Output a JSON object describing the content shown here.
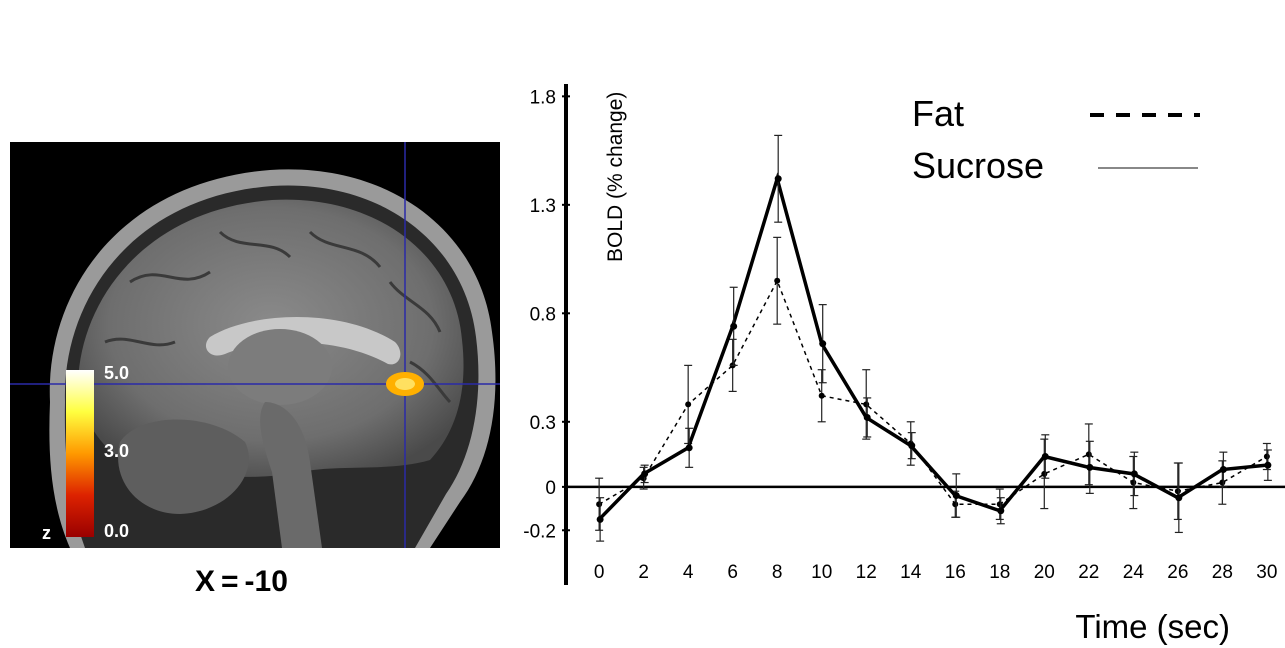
{
  "figure": {
    "slice_label": "X = -10",
    "colorbar": {
      "labels": [
        "5.0",
        "3.0",
        "0.0"
      ],
      "axis_letter": "z",
      "colors": [
        "#ffffff",
        "#ffff40",
        "#ff9900",
        "#dd2200",
        "#990000"
      ]
    },
    "activation_color": "#ffb000",
    "crosshair_color": "#2a2aa8"
  },
  "chart_data": {
    "type": "line",
    "ylabel": "BOLD (% change)",
    "xlabel": "Time (sec)",
    "x": [
      0,
      2,
      4,
      6,
      8,
      10,
      12,
      14,
      16,
      18,
      20,
      22,
      24,
      26,
      28,
      30
    ],
    "xticks": [
      "0",
      "2",
      "4",
      "6",
      "8",
      "10",
      "12",
      "14",
      "16",
      "18",
      "20",
      "22",
      "24",
      "26",
      "28",
      "30"
    ],
    "yticks": [
      "1.8",
      "1.3",
      "0.8",
      "0.3",
      "0",
      "-0.2"
    ],
    "ytick_values": [
      1.8,
      1.3,
      0.8,
      0.3,
      0.0,
      -0.2
    ],
    "ylim": [
      -0.42,
      1.82
    ],
    "xlim": [
      -0.5,
      30.5
    ],
    "series": [
      {
        "name": "Fat",
        "style": "dashed",
        "values": [
          -0.08,
          0.04,
          0.38,
          0.56,
          0.95,
          0.42,
          0.38,
          0.2,
          -0.08,
          -0.08,
          0.06,
          0.15,
          0.02,
          -0.02,
          0.02,
          0.14
        ],
        "errors": [
          0.12,
          0.05,
          0.18,
          0.12,
          0.2,
          0.12,
          0.16,
          0.1,
          0.06,
          0.07,
          0.16,
          0.14,
          0.12,
          0.13,
          0.1,
          0.06
        ]
      },
      {
        "name": "Sucrose",
        "style": "solid",
        "values": [
          -0.15,
          0.06,
          0.18,
          0.74,
          1.42,
          0.66,
          0.32,
          0.19,
          -0.04,
          -0.11,
          0.14,
          0.09,
          0.06,
          -0.05,
          0.08,
          0.1
        ],
        "errors": [
          0.1,
          0.04,
          0.09,
          0.18,
          0.2,
          0.18,
          0.09,
          0.06,
          0.1,
          0.06,
          0.1,
          0.12,
          0.1,
          0.16,
          0.08,
          0.07
        ]
      }
    ],
    "legend_position": "top-right"
  }
}
